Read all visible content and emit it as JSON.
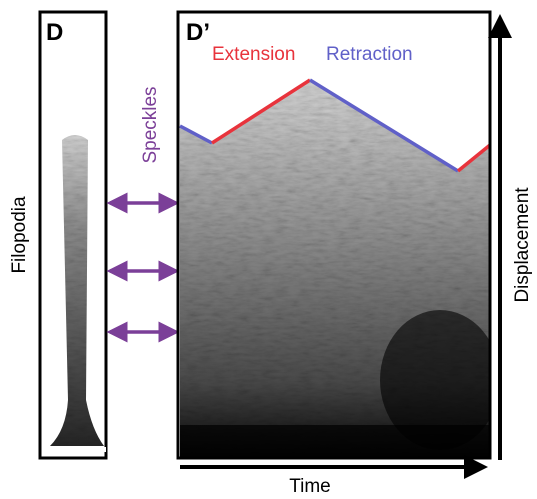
{
  "left_panel": {
    "label": "D",
    "side_label": "Filopodia"
  },
  "right_panel": {
    "label": "D’",
    "extension": "Extension",
    "retraction": "Retraction",
    "y_label": "Displacement",
    "x_label": "Time"
  },
  "arrows_label": "Speckles"
}
